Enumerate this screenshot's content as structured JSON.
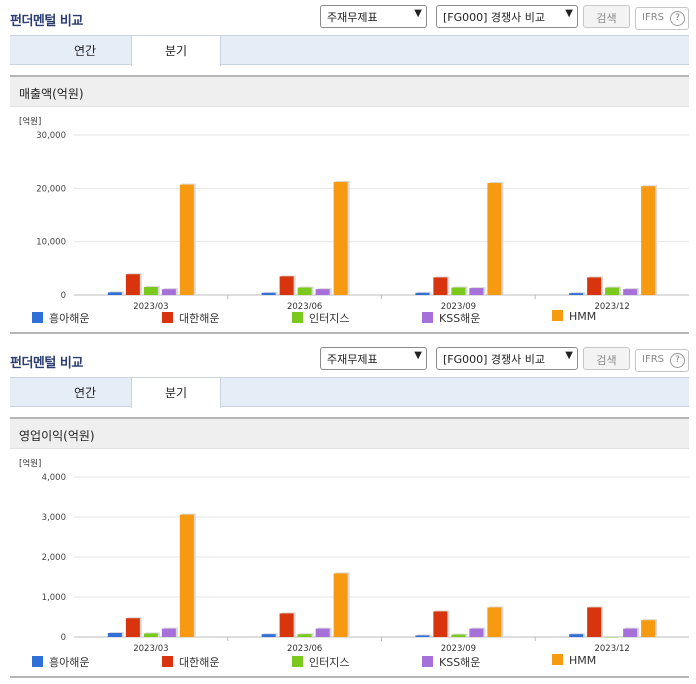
{
  "sections": [
    {
      "title": "펀더멘털 비교",
      "select1": "주재무제표",
      "select2": "[FG000] 경쟁사 비교",
      "search_label": "검색",
      "ifrs_label": "IFRS",
      "ifrs_help": "?",
      "tabs": [
        "연간",
        "분기"
      ],
      "active_tab": "분기",
      "chart_title": "매출액(억원)",
      "chart_data": {
        "type": "bar",
        "unit_label": "[억원]",
        "categories": [
          "2023/03",
          "2023/06",
          "2023/09",
          "2023/12"
        ],
        "ylim": [
          0,
          30000
        ],
        "yticks": [
          "0",
          "10,000",
          "20,000",
          "30,000"
        ],
        "ytick_values": [
          0,
          10000,
          20000,
          30000
        ],
        "grid": true,
        "legend": "bottom",
        "series": [
          {
            "name": "흥아해운",
            "color": "#2f6fd6",
            "values": [
              500,
              400,
              400,
              350
            ]
          },
          {
            "name": "대한해운",
            "color": "#d8350f",
            "values": [
              3900,
              3500,
              3300,
              3300
            ]
          },
          {
            "name": "인터지스",
            "color": "#7bc91c",
            "values": [
              1500,
              1400,
              1400,
              1400
            ]
          },
          {
            "name": "KSS해운",
            "color": "#a571d9",
            "values": [
              1100,
              1100,
              1300,
              1100
            ]
          },
          {
            "name": "HMM",
            "color": "#f79a11",
            "values": [
              20700,
              21200,
              21000,
              20400
            ]
          }
        ]
      }
    },
    {
      "title": "펀더멘털 비교",
      "select1": "주재무제표",
      "select2": "[FG000] 경쟁사 비교",
      "search_label": "검색",
      "ifrs_label": "IFRS",
      "ifrs_help": "?",
      "tabs": [
        "연간",
        "분기"
      ],
      "active_tab": "분기",
      "chart_title": "영업이익(억원)",
      "chart_data": {
        "type": "bar",
        "unit_label": "[억원]",
        "categories": [
          "2023/03",
          "2023/06",
          "2023/09",
          "2023/12"
        ],
        "ylim": [
          0,
          4000
        ],
        "yticks": [
          "0",
          "1,000",
          "2,000",
          "3,000",
          "4,000"
        ],
        "ytick_values": [
          0,
          1000,
          2000,
          3000,
          4000
        ],
        "grid": true,
        "legend": "bottom",
        "series": [
          {
            "name": "흥아해운",
            "color": "#2f6fd6",
            "values": [
              100,
              70,
              40,
              70
            ]
          },
          {
            "name": "대한해운",
            "color": "#d8350f",
            "values": [
              470,
              590,
              640,
              740
            ]
          },
          {
            "name": "인터지스",
            "color": "#7bc91c",
            "values": [
              90,
              70,
              60,
              0
            ]
          },
          {
            "name": "KSS해운",
            "color": "#a571d9",
            "values": [
              210,
              210,
              210,
              210
            ]
          },
          {
            "name": "HMM",
            "color": "#f79a11",
            "values": [
              3060,
              1590,
              740,
              420
            ]
          }
        ]
      }
    }
  ]
}
